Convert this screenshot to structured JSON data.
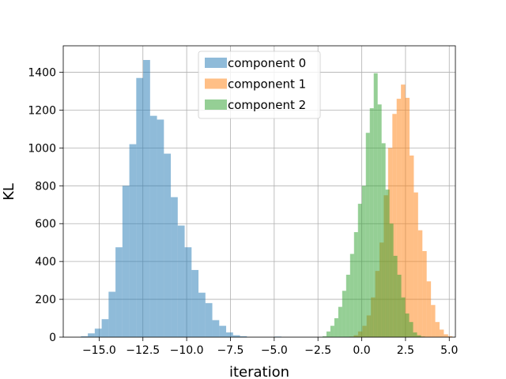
{
  "chart_data": {
    "type": "bar",
    "xlabel": "iteration",
    "ylabel": "KL",
    "xlim": [
      -17.05,
      5.35
    ],
    "ylim": [
      0,
      1540
    ],
    "grid": true,
    "legend_position": "top-center",
    "x_ticks": [
      {
        "value": -15,
        "label": "−15.0"
      },
      {
        "value": -12.5,
        "label": "−12.5"
      },
      {
        "value": -10,
        "label": "−10.0"
      },
      {
        "value": -7.5,
        "label": "−7.5"
      },
      {
        "value": -5,
        "label": "−5.0"
      },
      {
        "value": -2.5,
        "label": "−2.5"
      },
      {
        "value": 0,
        "label": "0.0"
      },
      {
        "value": 2.5,
        "label": "2.5"
      },
      {
        "value": 5,
        "label": "5.0"
      }
    ],
    "y_ticks": [
      {
        "value": 0,
        "label": "0"
      },
      {
        "value": 200,
        "label": "200"
      },
      {
        "value": 400,
        "label": "400"
      },
      {
        "value": 600,
        "label": "600"
      },
      {
        "value": 800,
        "label": "800"
      },
      {
        "value": 1000,
        "label": "1000"
      },
      {
        "value": 1200,
        "label": "1200"
      },
      {
        "value": 1400,
        "label": "1400"
      }
    ],
    "series": [
      {
        "name": "component 0",
        "color": "#1f77b4",
        "bin_start": -16.04,
        "bin_width": 0.395,
        "counts": [
          5,
          20,
          45,
          95,
          240,
          475,
          800,
          1020,
          1370,
          1465,
          1170,
          1150,
          970,
          740,
          590,
          475,
          355,
          235,
          180,
          90,
          60,
          25,
          10,
          5,
          0,
          0,
          0,
          0,
          3,
          0,
          0,
          0,
          0,
          0,
          0,
          0,
          0,
          0,
          2,
          0,
          0,
          0
        ]
      },
      {
        "name": "component 1",
        "color": "#ff7f0e",
        "bin_start": -0.7,
        "bin_width": 0.245,
        "counts": [
          3,
          10,
          30,
          60,
          115,
          210,
          350,
          500,
          750,
          1000,
          1180,
          1260,
          1335,
          1265,
          960,
          765,
          565,
          455,
          295,
          170,
          80,
          40,
          15,
          5
        ]
      },
      {
        "name": "component 2",
        "color": "#2ca02c",
        "bin_start": -2.24,
        "bin_width": 0.225,
        "counts": [
          5,
          30,
          60,
          100,
          160,
          245,
          330,
          440,
          555,
          705,
          800,
          1080,
          1210,
          1395,
          1230,
          1025,
          780,
          600,
          430,
          330,
          210,
          125,
          80,
          25,
          10,
          3
        ]
      }
    ]
  }
}
